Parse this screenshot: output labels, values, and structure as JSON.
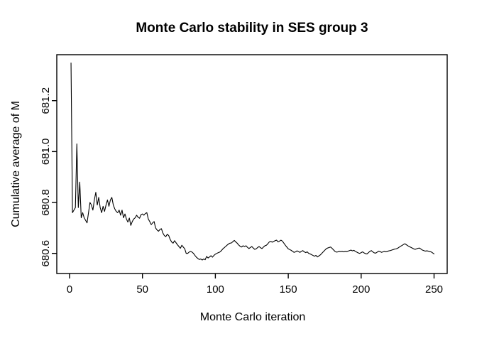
{
  "figure": {
    "background_color": "#ffffff",
    "line_color": "#000000",
    "text_color": "#000000"
  },
  "chart_data": {
    "type": "line",
    "title": "Monte Carlo stability in SES group 3",
    "xlabel": "Monte Carlo iteration",
    "ylabel": "Cumulative average of M",
    "legend": "none",
    "grid": false,
    "xlim": [
      -8.8,
      259
    ],
    "ylim": [
      680.52,
      681.37
    ],
    "x_ticks": [
      0,
      50,
      100,
      150,
      200,
      250
    ],
    "x_tick_labels": [
      "0",
      "50",
      "100",
      "150",
      "200",
      "250"
    ],
    "y_ticks": [
      680.6,
      680.8,
      681.0,
      681.2
    ],
    "y_tick_labels": [
      "680.6",
      "680.8",
      "681.0",
      "681.2"
    ],
    "series": [
      {
        "name": "cumulative-average-of-M",
        "x_start": 1,
        "x_step": 1,
        "values": [
          681.348,
          680.76,
          680.77,
          680.78,
          681.03,
          680.78,
          680.88,
          680.74,
          680.76,
          680.74,
          680.73,
          680.72,
          680.76,
          680.8,
          680.79,
          680.77,
          680.81,
          680.84,
          680.79,
          680.82,
          680.78,
          680.76,
          680.785,
          680.765,
          680.79,
          680.81,
          680.785,
          680.81,
          680.82,
          680.79,
          680.775,
          680.765,
          680.76,
          680.77,
          680.75,
          680.77,
          680.74,
          680.755,
          680.735,
          680.723,
          680.739,
          680.71,
          680.725,
          680.735,
          680.74,
          680.75,
          680.742,
          680.738,
          680.752,
          680.755,
          680.75,
          680.757,
          680.76,
          680.735,
          680.725,
          680.713,
          680.72,
          680.725,
          680.7,
          680.692,
          680.687,
          680.694,
          680.697,
          680.68,
          680.67,
          680.666,
          680.675,
          680.67,
          680.655,
          680.645,
          680.64,
          680.65,
          680.642,
          680.634,
          680.627,
          680.62,
          680.632,
          680.625,
          680.618,
          680.6,
          680.6,
          680.605,
          680.608,
          680.605,
          680.6,
          680.592,
          680.585,
          680.58,
          680.576,
          680.578,
          680.574,
          680.578,
          680.575,
          680.588,
          680.582,
          680.586,
          680.591,
          680.585,
          680.592,
          680.597,
          680.6,
          680.603,
          680.605,
          680.61,
          680.617,
          680.622,
          680.627,
          680.632,
          680.637,
          680.64,
          680.641,
          680.646,
          680.651,
          680.645,
          680.64,
          680.633,
          680.628,
          680.625,
          680.63,
          680.627,
          680.63,
          680.624,
          680.619,
          680.623,
          680.627,
          680.621,
          680.616,
          680.618,
          680.623,
          680.627,
          680.622,
          680.619,
          680.625,
          680.63,
          680.632,
          680.638,
          680.645,
          680.647,
          680.644,
          680.647,
          680.65,
          680.652,
          680.645,
          680.648,
          680.652,
          680.648,
          680.64,
          680.632,
          680.625,
          680.618,
          680.615,
          680.612,
          680.608,
          680.604,
          680.606,
          680.61,
          680.607,
          680.604,
          680.608,
          680.611,
          680.606,
          680.603,
          680.606,
          680.6,
          680.598,
          680.595,
          680.592,
          680.589,
          680.592,
          680.586,
          680.59,
          680.594,
          680.6,
          680.606,
          680.612,
          680.618,
          680.621,
          680.623,
          680.625,
          680.62,
          680.614,
          680.608,
          680.605,
          680.606,
          680.608,
          680.607,
          680.608,
          680.606,
          680.608,
          680.607,
          680.609,
          680.611,
          680.613,
          680.61,
          680.612,
          680.608,
          680.605,
          680.602,
          680.6,
          680.603,
          680.606,
          680.602,
          680.599,
          680.598,
          680.603,
          680.608,
          680.611,
          680.606,
          680.602,
          680.601,
          680.605,
          680.609,
          680.607,
          680.604,
          680.606,
          680.608,
          680.606,
          680.608,
          680.61,
          680.611,
          680.613,
          680.615,
          680.617,
          680.618,
          680.62,
          680.624,
          680.628,
          680.631,
          680.635,
          680.638,
          680.634,
          680.63,
          680.627,
          680.624,
          680.621,
          680.618,
          680.616,
          680.618,
          680.62,
          680.621,
          680.617,
          680.613,
          680.611,
          680.609,
          680.61,
          680.609,
          680.607,
          680.606,
          680.602,
          680.598
        ]
      }
    ]
  }
}
